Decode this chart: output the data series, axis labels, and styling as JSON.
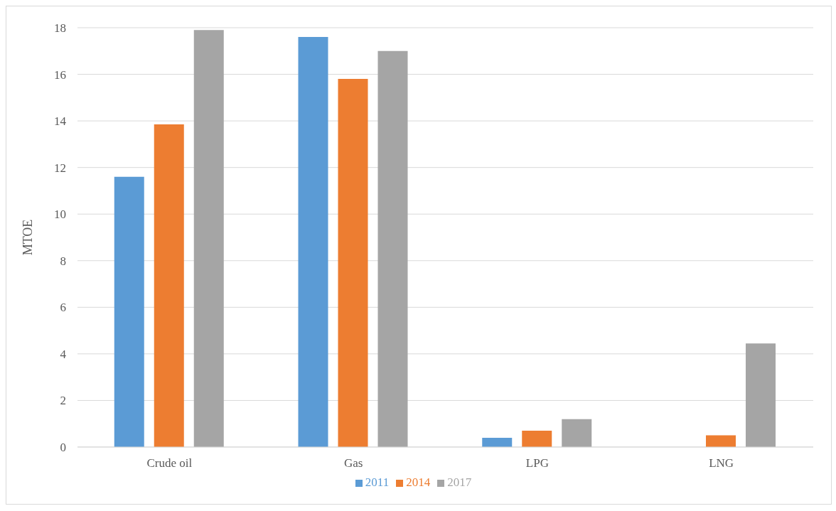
{
  "chart_data": {
    "type": "bar",
    "ylabel": "MTOE",
    "categories": [
      "Crude oil",
      "Gas",
      "LPG",
      "LNG"
    ],
    "series": [
      {
        "name": "2011",
        "color": "#5b9bd5",
        "values": [
          11.6,
          17.6,
          0.4,
          0
        ]
      },
      {
        "name": "2014",
        "color": "#ed7d31",
        "values": [
          13.85,
          15.8,
          0.7,
          0.5
        ]
      },
      {
        "name": "2017",
        "color": "#a5a5a5",
        "values": [
          17.9,
          17.0,
          1.2,
          4.45
        ]
      }
    ],
    "ylim": [
      0,
      18
    ],
    "yticks": [
      0,
      2,
      4,
      6,
      8,
      10,
      12,
      14,
      16,
      18
    ],
    "grid": "y",
    "legend": "bottom"
  }
}
